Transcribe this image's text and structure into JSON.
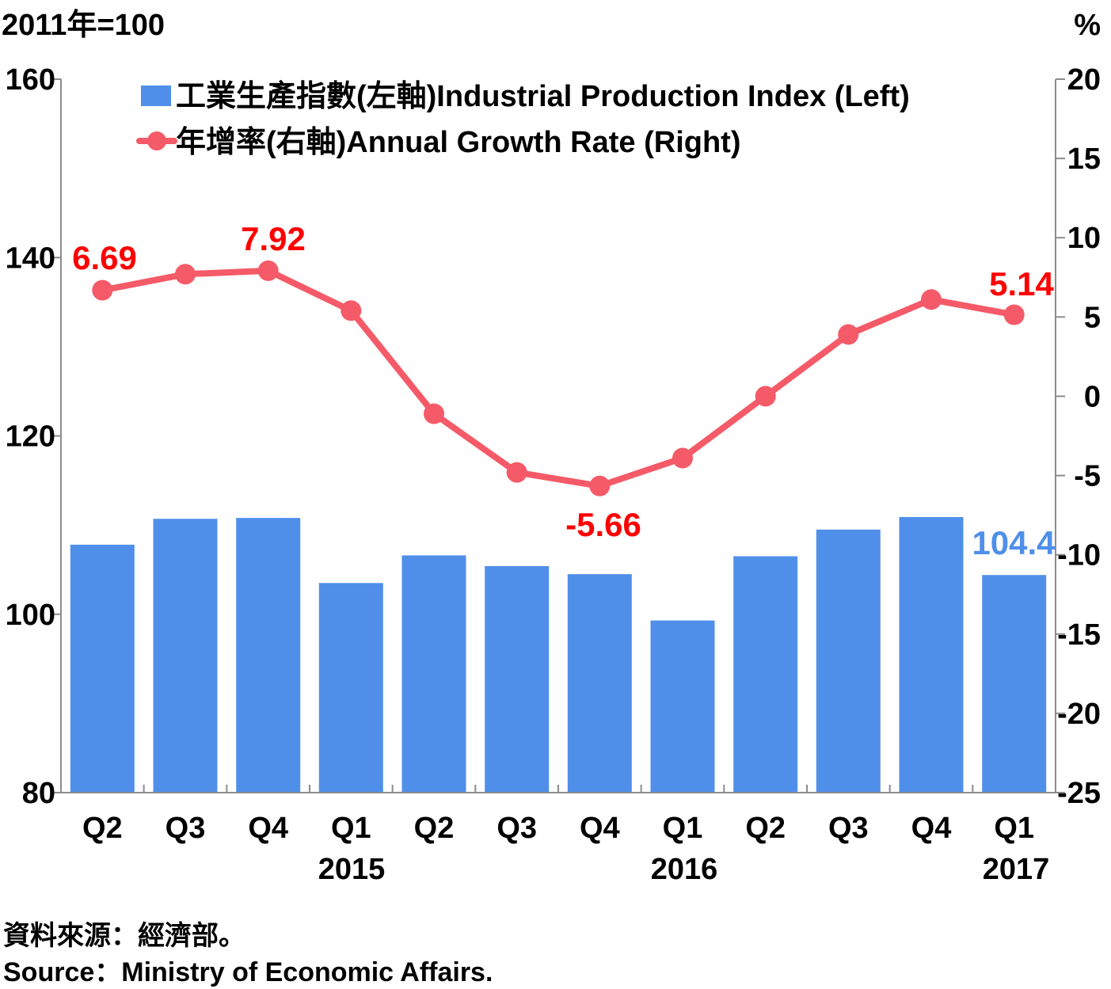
{
  "chart_data": {
    "type": "bar",
    "left_unit": "2011年=100",
    "right_unit": "%",
    "categories": [
      "Q2",
      "Q3",
      "Q4",
      "Q1",
      "Q2",
      "Q3",
      "Q4",
      "Q1",
      "Q2",
      "Q3",
      "Q4",
      "Q1"
    ],
    "years": [
      {
        "label": "2015",
        "index": 3
      },
      {
        "label": "2016",
        "index": 7
      },
      {
        "label": "2017",
        "index": 11
      }
    ],
    "y_left": {
      "min": 80,
      "max": 160,
      "ticks": [
        "80",
        "100",
        "120",
        "140",
        "160"
      ]
    },
    "y_right": {
      "min": -25,
      "max": 20,
      "ticks": [
        "-25",
        "-20",
        "-15",
        "-10",
        "-5",
        "0",
        "5",
        "10",
        "15",
        "20"
      ]
    },
    "series": [
      {
        "name": "工業生產指數(左軸)Industrial Production Index (Left)",
        "type": "bar",
        "axis": "left",
        "color": "#4f8fea",
        "values": [
          107.8,
          110.7,
          110.8,
          103.5,
          106.6,
          105.4,
          104.5,
          99.3,
          106.5,
          109.5,
          110.9,
          104.4
        ]
      },
      {
        "name": "年增率(右軸)Annual Growth Rate (Right)",
        "type": "line",
        "axis": "right",
        "color": "#f55a68",
        "values": [
          6.69,
          7.7,
          7.92,
          5.4,
          -1.1,
          -4.8,
          -5.66,
          -3.9,
          0.0,
          3.9,
          6.1,
          5.14
        ]
      }
    ],
    "data_labels": [
      {
        "series": 1,
        "index": 0,
        "text": "6.69",
        "color": "#ff0000"
      },
      {
        "series": 1,
        "index": 2,
        "text": "7.92",
        "color": "#ff0000"
      },
      {
        "series": 1,
        "index": 6,
        "text": "-5.66",
        "color": "#ff0000"
      },
      {
        "series": 1,
        "index": 11,
        "text": "5.14",
        "color": "#ff0000"
      },
      {
        "series": 0,
        "index": 11,
        "text": "104.4",
        "color": "#4f8fea"
      }
    ],
    "legend_position": "top-center",
    "grid": false
  },
  "source": {
    "zh": "資料來源：經濟部。",
    "en": "Source：Ministry of Economic Affairs."
  }
}
